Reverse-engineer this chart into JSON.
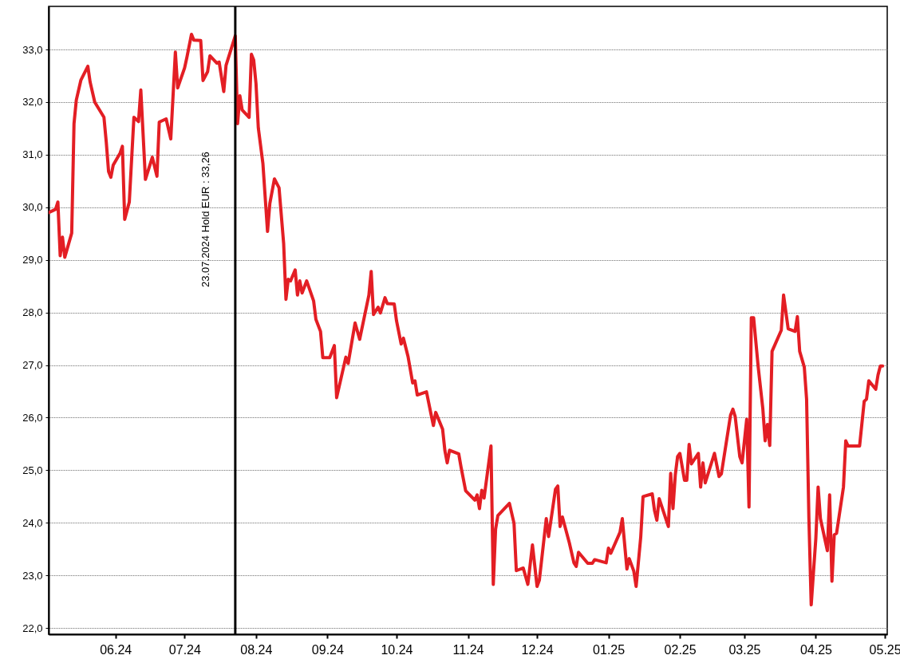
{
  "chart_data": {
    "type": "line",
    "xlim": [
      "2024-05-03",
      "2025-05-02"
    ],
    "ylim": [
      21.88,
      33.82
    ],
    "xticks": [
      {
        "value": "2024-06-01",
        "label": "06.24"
      },
      {
        "value": "2024-07-01",
        "label": "07.24"
      },
      {
        "value": "2024-08-01",
        "label": "08.24"
      },
      {
        "value": "2024-09-01",
        "label": "09.24"
      },
      {
        "value": "2024-10-01",
        "label": "10.24"
      },
      {
        "value": "2024-11-01",
        "label": "11.24"
      },
      {
        "value": "2024-12-01",
        "label": "12.24"
      },
      {
        "value": "2025-01-01",
        "label": "01.25"
      },
      {
        "value": "2025-02-01",
        "label": "02.25"
      },
      {
        "value": "2025-03-01",
        "label": "03.25"
      },
      {
        "value": "2025-04-01",
        "label": "04.25"
      },
      {
        "value": "2025-05-01",
        "label": "05.25"
      }
    ],
    "yticks": [
      {
        "value": 22,
        "label": "22,0"
      },
      {
        "value": 23,
        "label": "23,0"
      },
      {
        "value": 24,
        "label": "24,0"
      },
      {
        "value": 25,
        "label": "25,0"
      },
      {
        "value": 26,
        "label": "26,0"
      },
      {
        "value": 27,
        "label": "27,0"
      },
      {
        "value": 28,
        "label": "28,0"
      },
      {
        "value": 29,
        "label": "29,0"
      },
      {
        "value": 30,
        "label": "30,0"
      },
      {
        "value": 31,
        "label": "31,0"
      },
      {
        "value": 32,
        "label": "32,0"
      },
      {
        "value": 33,
        "label": "33,0"
      }
    ],
    "grid": "y",
    "line_style": "solid",
    "marker": "none",
    "ref_lines": [
      {
        "axis": "x",
        "value": "2024-07-23",
        "label": "23.07.2024 Hold EUR : 33,26",
        "color": "#000000"
      }
    ],
    "series": [
      {
        "color": "#e31e24",
        "x": [
          "2024-05-03",
          "2024-05-06",
          "2024-05-07",
          "2024-05-08",
          "2024-05-09",
          "2024-05-10",
          "2024-05-13",
          "2024-05-14",
          "2024-05-15",
          "2024-05-17",
          "2024-05-20",
          "2024-05-21",
          "2024-05-23",
          "2024-05-27",
          "2024-05-28",
          "2024-05-29",
          "2024-05-30",
          "2024-05-31",
          "2024-06-03",
          "2024-06-04",
          "2024-06-05",
          "2024-06-07",
          "2024-06-09",
          "2024-06-11",
          "2024-06-12",
          "2024-06-14",
          "2024-06-17",
          "2024-06-19",
          "2024-06-20",
          "2024-06-23",
          "2024-06-25",
          "2024-06-27",
          "2024-06-28",
          "2024-07-01",
          "2024-07-02",
          "2024-07-04",
          "2024-07-05",
          "2024-07-08",
          "2024-07-09",
          "2024-07-11",
          "2024-07-12",
          "2024-07-15",
          "2024-07-16",
          "2024-07-18",
          "2024-07-19",
          "2024-07-23",
          "2024-07-24",
          "2024-07-25",
          "2024-07-26",
          "2024-07-29",
          "2024-07-30",
          "2024-07-31",
          "2024-08-01",
          "2024-08-02",
          "2024-08-04",
          "2024-08-06",
          "2024-08-07",
          "2024-08-09",
          "2024-08-11",
          "2024-08-13",
          "2024-08-14",
          "2024-08-15",
          "2024-08-16",
          "2024-08-18",
          "2024-08-19",
          "2024-08-20",
          "2024-08-21",
          "2024-08-23",
          "2024-08-26",
          "2024-08-27",
          "2024-08-29",
          "2024-08-30",
          "2024-09-02",
          "2024-09-04",
          "2024-09-05",
          "2024-09-09",
          "2024-09-10",
          "2024-09-13",
          "2024-09-15",
          "2024-09-19",
          "2024-09-20",
          "2024-09-21",
          "2024-09-23",
          "2024-09-24",
          "2024-09-26",
          "2024-09-27",
          "2024-09-30",
          "2024-10-01",
          "2024-10-03",
          "2024-10-04",
          "2024-10-06",
          "2024-10-08",
          "2024-10-09",
          "2024-10-10",
          "2024-10-14",
          "2024-10-16",
          "2024-10-17",
          "2024-10-18",
          "2024-10-21",
          "2024-10-22",
          "2024-10-23",
          "2024-10-24",
          "2024-10-28",
          "2024-10-29",
          "2024-10-31",
          "2024-11-04",
          "2024-11-05",
          "2024-11-06",
          "2024-11-07",
          "2024-11-08",
          "2024-11-11",
          "2024-11-12",
          "2024-11-13",
          "2024-11-14",
          "2024-11-19",
          "2024-11-21",
          "2024-11-22",
          "2024-11-25",
          "2024-11-27",
          "2024-11-29",
          "2024-12-01",
          "2024-12-02",
          "2024-12-05",
          "2024-12-06",
          "2024-12-09",
          "2024-12-10",
          "2024-12-11",
          "2024-12-12",
          "2024-12-15",
          "2024-12-17",
          "2024-12-18",
          "2024-12-19",
          "2024-12-23",
          "2024-12-25",
          "2024-12-26",
          "2024-12-31",
          "2025-01-01",
          "2025-01-02",
          "2025-01-06",
          "2025-01-07",
          "2025-01-09",
          "2025-01-10",
          "2025-01-12",
          "2025-01-13",
          "2025-01-15",
          "2025-01-16",
          "2025-01-20",
          "2025-01-21",
          "2025-01-22",
          "2025-01-23",
          "2025-01-27",
          "2025-01-28",
          "2025-01-29",
          "2025-01-30",
          "2025-01-31",
          "2025-02-01",
          "2025-02-03",
          "2025-02-04",
          "2025-02-05",
          "2025-02-06",
          "2025-02-09",
          "2025-02-10",
          "2025-02-11",
          "2025-02-12",
          "2025-02-16",
          "2025-02-18",
          "2025-02-19",
          "2025-02-23",
          "2025-02-24",
          "2025-02-25",
          "2025-02-27",
          "2025-02-28",
          "2025-03-02",
          "2025-03-03",
          "2025-03-04",
          "2025-03-05",
          "2025-03-07",
          "2025-03-09",
          "2025-03-10",
          "2025-03-11",
          "2025-03-12",
          "2025-03-13",
          "2025-03-17",
          "2025-03-18",
          "2025-03-20",
          "2025-03-23",
          "2025-03-24",
          "2025-03-25",
          "2025-03-27",
          "2025-03-28",
          "2025-03-29",
          "2025-03-30",
          "2025-04-01",
          "2025-04-02",
          "2025-04-03",
          "2025-04-06",
          "2025-04-07",
          "2025-04-08",
          "2025-04-09",
          "2025-04-10",
          "2025-04-13",
          "2025-04-14",
          "2025-04-15",
          "2025-04-20",
          "2025-04-22",
          "2025-04-23",
          "2025-04-24",
          "2025-04-27",
          "2025-04-28",
          "2025-04-29",
          "2025-04-30"
        ],
        "values": [
          29.9,
          29.96,
          30.1,
          29.08,
          29.43,
          29.05,
          29.51,
          31.59,
          32.04,
          32.42,
          32.68,
          32.38,
          32.0,
          31.71,
          31.24,
          30.68,
          30.57,
          30.8,
          31.03,
          31.16,
          29.77,
          30.1,
          31.71,
          31.63,
          32.23,
          30.53,
          30.95,
          30.59,
          31.62,
          31.68,
          31.3,
          32.95,
          32.27,
          32.65,
          32.85,
          33.29,
          33.18,
          33.17,
          32.41,
          32.58,
          32.88,
          32.74,
          32.76,
          32.2,
          32.7,
          33.26,
          31.59,
          32.12,
          31.85,
          31.71,
          32.91,
          32.8,
          32.35,
          31.51,
          30.83,
          29.54,
          30.07,
          30.54,
          30.37,
          29.31,
          28.25,
          28.63,
          28.6,
          28.81,
          28.33,
          28.6,
          28.37,
          28.6,
          28.22,
          27.87,
          27.64,
          27.14,
          27.14,
          27.37,
          26.38,
          27.15,
          27.03,
          27.8,
          27.49,
          28.33,
          28.78,
          27.96,
          28.1,
          27.99,
          28.28,
          28.17,
          28.16,
          27.84,
          27.4,
          27.51,
          27.16,
          26.66,
          26.7,
          26.43,
          26.49,
          26.06,
          25.85,
          26.1,
          25.78,
          25.37,
          25.14,
          25.38,
          25.31,
          25.06,
          24.61,
          24.43,
          24.53,
          24.27,
          24.62,
          24.47,
          25.46,
          22.83,
          23.88,
          24.14,
          24.37,
          23.99,
          23.09,
          23.14,
          22.83,
          23.58,
          22.79,
          22.91,
          24.08,
          23.74,
          24.64,
          24.7,
          23.93,
          24.11,
          23.62,
          23.24,
          23.17,
          23.44,
          23.23,
          23.23,
          23.3,
          23.24,
          23.52,
          23.42,
          23.82,
          24.08,
          23.12,
          23.32,
          23.08,
          22.79,
          23.73,
          24.5,
          24.55,
          24.23,
          24.05,
          24.46,
          23.93,
          24.94,
          24.27,
          24.91,
          25.26,
          25.32,
          24.81,
          24.81,
          25.49,
          25.12,
          25.32,
          24.68,
          25.14,
          24.76,
          25.32,
          24.88,
          24.93,
          26.05,
          26.16,
          26.02,
          25.26,
          25.14,
          25.97,
          24.3,
          27.9,
          27.9,
          26.96,
          26.17,
          25.56,
          25.87,
          25.47,
          27.26,
          27.66,
          28.33,
          27.69,
          27.64,
          27.92,
          27.26,
          26.96,
          26.35,
          24.08,
          22.44,
          23.7,
          24.68,
          24.08,
          23.47,
          24.53,
          22.89,
          23.77,
          23.8,
          24.68,
          25.56,
          25.46,
          25.46,
          26.31,
          26.35,
          26.7,
          26.54,
          26.81,
          26.98,
          26.98
        ]
      }
    ]
  }
}
